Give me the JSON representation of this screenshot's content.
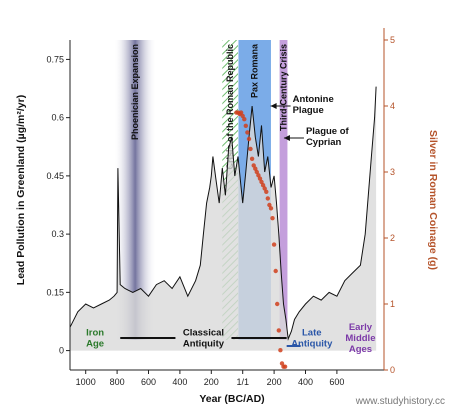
{
  "chart_data": {
    "type": "line",
    "title": "",
    "xlabel": "Year (BC/AD)",
    "ylabel": "Lead Pollution in Greenland (µg/m²/yr)",
    "y2label": "Silver in Roman Coinage (g)",
    "xlim": [
      -1100,
      900
    ],
    "ylim": [
      -0.05,
      0.8
    ],
    "y2lim": [
      0,
      5
    ],
    "x_ticks": [
      -1000,
      -800,
      -600,
      -400,
      -200,
      0,
      200,
      400,
      600
    ],
    "x_tick_labels": [
      "1000",
      "800",
      "600",
      "400",
      "200",
      "1/1",
      "200",
      "400",
      "600"
    ],
    "y_ticks": [
      0,
      0.15,
      0.3,
      0.45,
      0.6,
      0.75
    ],
    "y_tick_labels": [
      "0",
      "0.15",
      "0.3",
      "0.45",
      "0.6",
      "0.75"
    ],
    "y2_ticks": [
      0,
      1,
      2,
      3,
      4,
      5
    ],
    "y2_tick_labels": [
      "0",
      "1",
      "2",
      "3",
      "4",
      "5"
    ],
    "series": [
      {
        "axis": "left",
        "style": "line",
        "color": "#111111",
        "x": [
          -1100,
          -1050,
          -1000,
          -950,
          -900,
          -850,
          -820,
          -800,
          -795,
          -780,
          -750,
          -700,
          -650,
          -600,
          -550,
          -500,
          -450,
          -400,
          -350,
          -300,
          -270,
          -250,
          -230,
          -210,
          -200,
          -190,
          -170,
          -150,
          -130,
          -110,
          -90,
          -70,
          -50,
          -30,
          -10,
          0,
          20,
          40,
          60,
          80,
          100,
          120,
          140,
          160,
          180,
          200,
          215,
          230,
          245,
          260,
          275,
          290,
          310,
          330,
          360,
          400,
          450,
          500,
          550,
          600,
          650,
          700,
          750,
          780,
          800,
          820,
          840,
          850
        ],
        "values": [
          0.06,
          0.1,
          0.12,
          0.11,
          0.12,
          0.13,
          0.14,
          0.15,
          0.47,
          0.17,
          0.16,
          0.15,
          0.16,
          0.14,
          0.17,
          0.18,
          0.16,
          0.19,
          0.14,
          0.18,
          0.22,
          0.3,
          0.38,
          0.42,
          0.45,
          0.5,
          0.44,
          0.38,
          0.47,
          0.4,
          0.52,
          0.55,
          0.45,
          0.5,
          0.42,
          0.38,
          0.46,
          0.55,
          0.63,
          0.55,
          0.5,
          0.58,
          0.46,
          0.5,
          0.42,
          0.45,
          0.38,
          0.3,
          0.2,
          0.12,
          0.08,
          0.03,
          0.05,
          0.08,
          0.1,
          0.12,
          0.14,
          0.13,
          0.15,
          0.14,
          0.18,
          0.2,
          0.22,
          0.3,
          0.4,
          0.5,
          0.6,
          0.68
        ]
      },
      {
        "axis": "right",
        "style": "scatter",
        "color": "#d0401c",
        "x": [
          -40,
          -30,
          -20,
          -10,
          0,
          10,
          20,
          30,
          40,
          50,
          60,
          70,
          80,
          90,
          100,
          110,
          120,
          130,
          140,
          150,
          160,
          170,
          180,
          190,
          200,
          210,
          220,
          230,
          240,
          250,
          260,
          270
        ],
        "values": [
          3.9,
          3.9,
          3.88,
          3.9,
          3.85,
          3.8,
          3.7,
          3.6,
          3.5,
          3.35,
          3.2,
          3.1,
          3.05,
          3.0,
          2.95,
          2.9,
          2.85,
          2.8,
          2.75,
          2.7,
          2.6,
          2.5,
          2.45,
          2.3,
          1.9,
          1.5,
          1.0,
          0.6,
          0.3,
          0.1,
          0.05,
          0.05
        ]
      }
    ],
    "bands": [
      {
        "name": "Phoenician Expansion",
        "x0": -820,
        "x1": -550,
        "fill": "#7b7ba6"
      },
      {
        "name": "Crisis of the Roman Republic",
        "x0": -130,
        "x1": -30,
        "fill": "#7ac27a"
      },
      {
        "name": "Pax Romana",
        "x0": -27,
        "x1": 180,
        "fill": "#4f90e0"
      },
      {
        "name": "Third-Century Crisis",
        "x0": 235,
        "x1": 285,
        "fill": "#b07fd0"
      }
    ],
    "annotations": [
      {
        "text_lines": [
          "Antonine",
          "Plague"
        ],
        "x": 165
      },
      {
        "text_lines": [
          "Plague of",
          "Cyprian"
        ],
        "x": 250
      }
    ],
    "eras": [
      {
        "lines": [
          "Iron",
          "Age"
        ],
        "color": "#2b7a2b",
        "x0": -1100,
        "x1": -780
      },
      {
        "lines": [
          "Classical",
          "Antiquity"
        ],
        "color": "#111111",
        "x0": -780,
        "x1": 280
      },
      {
        "lines": [
          "Late",
          "Antiquity"
        ],
        "color": "#2a56a8",
        "x0": 280,
        "x1": 600
      },
      {
        "lines": [
          "Early",
          "Middle",
          "Ages"
        ],
        "color": "#7c3aa8",
        "x0": 600,
        "x1": 900
      }
    ],
    "grid": false,
    "legend": "none"
  },
  "watermark": "www.studyhistory.cc"
}
